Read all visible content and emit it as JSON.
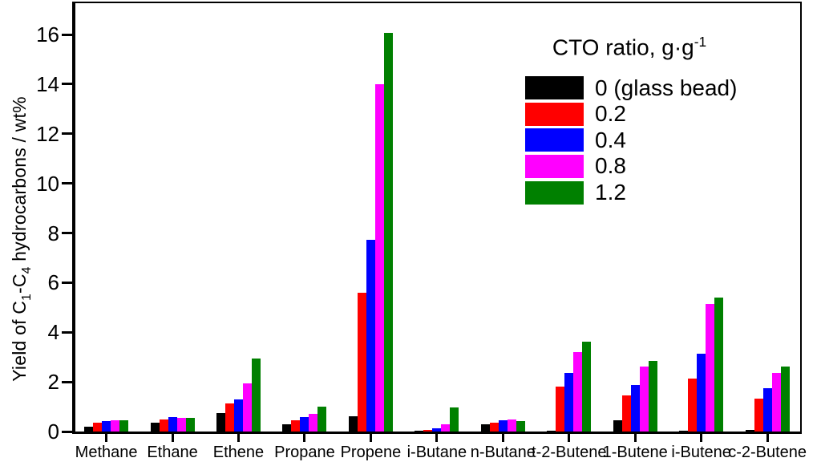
{
  "figure": {
    "ylabel_parts": {
      "p1": "Yield of C",
      "s1": "1",
      "p2": "-C",
      "s2": "4",
      "p3": " hydrocarbons / wt%"
    }
  },
  "legend": {
    "title_main": "CTO ratio, g·g",
    "title_sup": "-1"
  },
  "chart_data": {
    "type": "bar",
    "title": "",
    "xlabel": "",
    "ylabel": "Yield of C1-C4 hydrocarbons / wt%",
    "ylim": [
      0,
      17.3
    ],
    "yticks": [
      0,
      2,
      4,
      6,
      8,
      10,
      12,
      14,
      16
    ],
    "grid": false,
    "legend_title": "CTO ratio, g·g-1",
    "legend_position": "inside-top-right",
    "categories": [
      "Methane",
      "Ethane",
      "Ethene",
      "Propane",
      "Propene",
      "i-Butane",
      "n-Butane",
      "t-2-Butene",
      "1-Butene",
      "i-Butene",
      "c-2-Butene"
    ],
    "series": [
      {
        "name": "0 (glass bead)",
        "color": "#000000",
        "values": [
          0.2,
          0.34,
          0.75,
          0.29,
          0.61,
          0.02,
          0.28,
          0.04,
          0.46,
          0.03,
          0.05
        ]
      },
      {
        "name": "0.2",
        "color": "#ff0000",
        "values": [
          0.34,
          0.5,
          1.13,
          0.46,
          5.58,
          0.06,
          0.37,
          1.81,
          1.46,
          2.12,
          1.33
        ]
      },
      {
        "name": "0.4",
        "color": "#0000ff",
        "values": [
          0.42,
          0.58,
          1.28,
          0.58,
          7.74,
          0.12,
          0.45,
          2.35,
          1.89,
          3.14,
          1.73
        ]
      },
      {
        "name": "0.8",
        "color": "#ff00ff",
        "values": [
          0.45,
          0.56,
          1.94,
          0.7,
          14.0,
          0.28,
          0.5,
          3.21,
          2.62,
          5.14,
          2.37
        ]
      },
      {
        "name": "1.2",
        "color": "#008000",
        "values": [
          0.46,
          0.54,
          2.93,
          0.99,
          16.05,
          0.96,
          0.42,
          3.63,
          2.83,
          5.39,
          2.61
        ]
      }
    ]
  }
}
